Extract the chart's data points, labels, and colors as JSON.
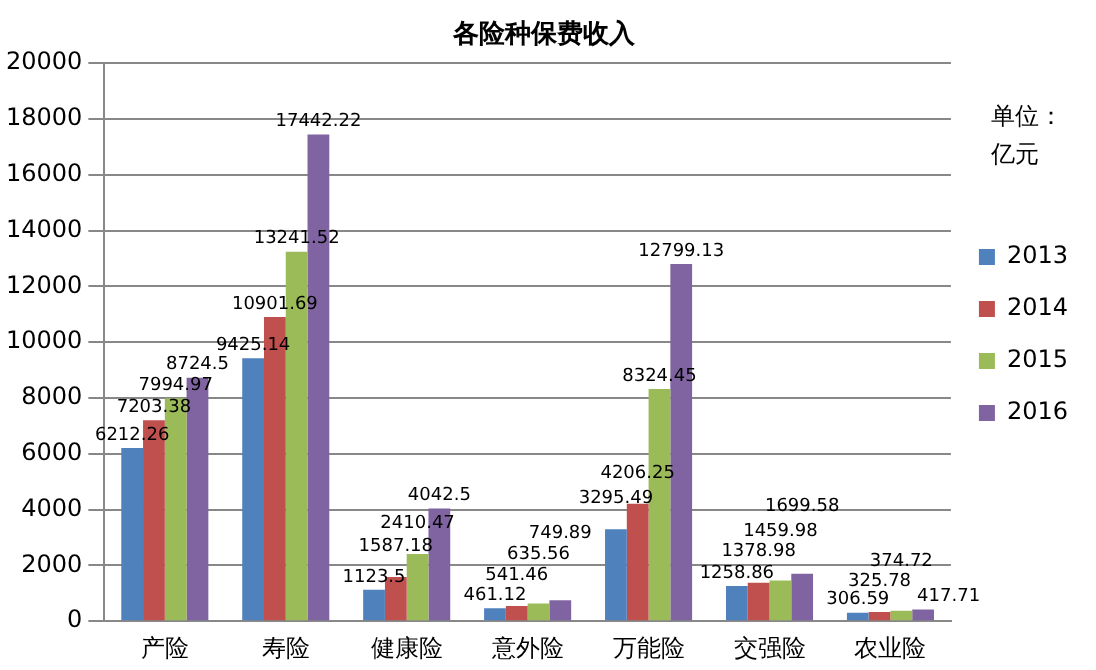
{
  "chart_data": {
    "type": "bar",
    "title": "各险种保费收入",
    "categories": [
      "产险",
      "寿险",
      "健康险",
      "意外险",
      "万能险",
      "交强险",
      "农业险"
    ],
    "series": [
      {
        "name": "2013",
        "color": "#4f81bd",
        "values": [
          6212.26,
          9425.14,
          1123.5,
          461.12,
          3295.49,
          1258.86,
          306.59
        ]
      },
      {
        "name": "2014",
        "color": "#c0504d",
        "values": [
          7203.38,
          10901.69,
          1587.18,
          541.46,
          4206.25,
          1378.98,
          325.78
        ]
      },
      {
        "name": "2015",
        "color": "#9bbb59",
        "values": [
          7994.97,
          13241.52,
          2410.47,
          635.56,
          8324.45,
          1459.98,
          374.72
        ]
      },
      {
        "name": "2016",
        "color": "#8064a2",
        "values": [
          8724.5,
          17442.22,
          4042.5,
          749.89,
          12799.13,
          1699.58,
          417.71
        ]
      }
    ],
    "ylim": [
      0,
      20000
    ],
    "yticks": [
      0,
      2000,
      4000,
      6000,
      8000,
      10000,
      12000,
      14000,
      16000,
      18000,
      20000
    ],
    "grid": "y",
    "legend": "right",
    "data_labels": true,
    "annotations": [
      "单位：",
      "亿元"
    ]
  }
}
